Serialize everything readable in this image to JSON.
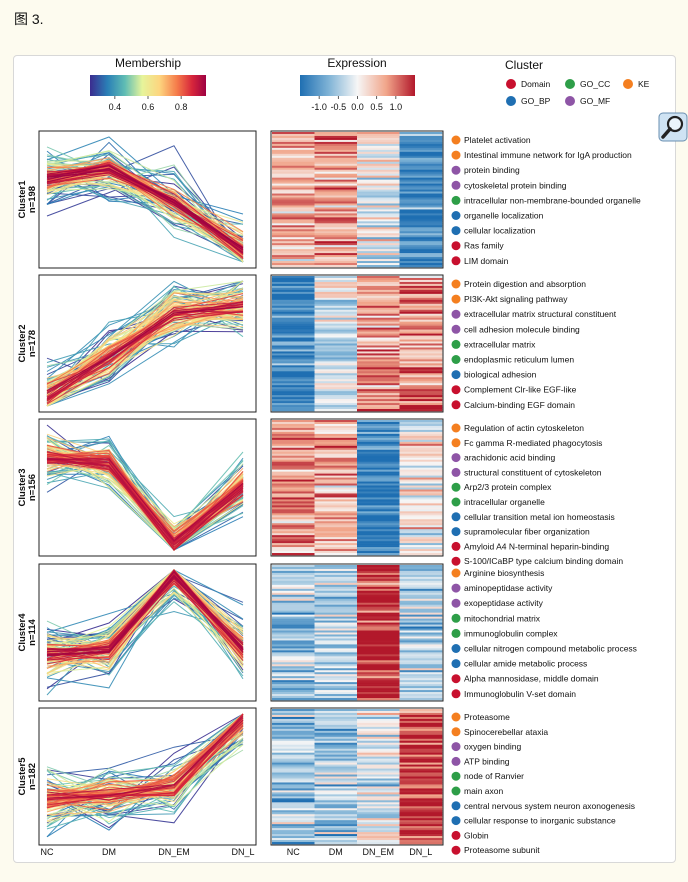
{
  "figure_label": "图 3.",
  "legends": {
    "membership": {
      "title": "Membership",
      "ticks": [
        "0.4",
        "0.6",
        "0.8"
      ],
      "tick_values": [
        0.4,
        0.6,
        0.8
      ],
      "range": [
        0.25,
        0.95
      ]
    },
    "expression": {
      "title": "Expression",
      "ticks": [
        "-1.0",
        "-0.5",
        "0.0",
        "0.5",
        "1.0"
      ],
      "tick_values": [
        -1.0,
        -0.5,
        0.0,
        0.5,
        1.0
      ],
      "range": [
        -1.5,
        1.5
      ]
    },
    "cluster": {
      "title": "Cluster",
      "entries": [
        {
          "label": "Domain",
          "color": "#c8102e"
        },
        {
          "label": "GO_CC",
          "color": "#2e9e48"
        },
        {
          "label": "KE",
          "color": "#f47f20"
        },
        {
          "label": "GO_BP",
          "color": "#1f6fb2"
        },
        {
          "label": "GO_MF",
          "color": "#8e55a6"
        }
      ]
    }
  },
  "x_labels": [
    "NC",
    "DM",
    "DN_EM",
    "DN_L"
  ],
  "clusters": [
    {
      "name": "Cluster1",
      "n": "n=198",
      "pattern": [
        0.55,
        0.75,
        -0.05,
        -1.25
      ],
      "terms": [
        {
          "label": "Platelet activation",
          "type": "KEGG"
        },
        {
          "label": "Intestinal immune network for IgA production",
          "type": "KEGG"
        },
        {
          "label": "protein binding",
          "type": "GO_MF"
        },
        {
          "label": "cytoskeletal protein binding",
          "type": "GO_MF"
        },
        {
          "label": "intracellular non-membrane-bounded organelle",
          "type": "GO_CC"
        },
        {
          "label": "organelle localization",
          "type": "GO_BP"
        },
        {
          "label": "cellular localization",
          "type": "GO_BP"
        },
        {
          "label": "Ras family",
          "type": "Domain"
        },
        {
          "label": "LIM domain",
          "type": "Domain"
        }
      ]
    },
    {
      "name": "Cluster2",
      "n": "n=178",
      "pattern": [
        -1.3,
        -0.35,
        0.75,
        0.9
      ],
      "terms": [
        {
          "label": "Protein digestion and absorption",
          "type": "KEGG"
        },
        {
          "label": "PI3K-Akt signaling pathway",
          "type": "KEGG"
        },
        {
          "label": "extracellular matrix structural constituent",
          "type": "GO_MF"
        },
        {
          "label": "cell adhesion molecule binding",
          "type": "GO_MF"
        },
        {
          "label": "extracellular matrix",
          "type": "GO_CC"
        },
        {
          "label": "endoplasmic reticulum lumen",
          "type": "GO_CC"
        },
        {
          "label": "biological adhesion",
          "type": "GO_BP"
        },
        {
          "label": "Complement Clr-like EGF-like",
          "type": "Domain"
        },
        {
          "label": "Calcium-binding EGF domain",
          "type": "Domain"
        }
      ]
    },
    {
      "name": "Cluster3",
      "n": "n=156",
      "pattern": [
        0.75,
        0.6,
        -1.4,
        0.05
      ],
      "terms": [
        {
          "label": "Regulation of actin cytoskeleton",
          "type": "KEGG"
        },
        {
          "label": "Fc gamma R-mediated phagocytosis",
          "type": "KEGG"
        },
        {
          "label": "arachidonic acid binding",
          "type": "GO_MF"
        },
        {
          "label": "structural constituent of cytoskeleton",
          "type": "GO_MF"
        },
        {
          "label": "Arp2/3 protein complex",
          "type": "GO_CC"
        },
        {
          "label": "intracellular organelle",
          "type": "GO_CC"
        },
        {
          "label": "cellular transition metal ion homeostasis",
          "type": "GO_BP"
        },
        {
          "label": "supramolecular fiber organization",
          "type": "GO_BP"
        },
        {
          "label": "Amyloid A4 N-terminal heparin-binding",
          "type": "Domain"
        },
        {
          "label": "S-100/ICaBP type calcium binding domain",
          "type": "Domain"
        }
      ]
    },
    {
      "name": "Cluster4",
      "n": "n=114",
      "pattern": [
        -0.55,
        -0.45,
        1.45,
        -0.45
      ],
      "terms": [
        {
          "label": "Arginine biosynthesis",
          "type": "KEGG"
        },
        {
          "label": "aminopeptidase activity",
          "type": "GO_MF"
        },
        {
          "label": "exopeptidase activity",
          "type": "GO_MF"
        },
        {
          "label": "mitochondrial matrix",
          "type": "GO_CC"
        },
        {
          "label": "immunoglobulin complex",
          "type": "GO_CC"
        },
        {
          "label": "cellular nitrogen compound metabolic process",
          "type": "GO_BP"
        },
        {
          "label": "cellular amide metabolic process",
          "type": "GO_BP"
        },
        {
          "label": "Alpha mannosidase, middle domain",
          "type": "Domain"
        },
        {
          "label": "Immunoglobulin V-set domain",
          "type": "Domain"
        }
      ]
    },
    {
      "name": "Cluster5",
      "n": "n=182",
      "pattern": [
        -0.55,
        -0.45,
        -0.25,
        1.45
      ],
      "terms": [
        {
          "label": "Proteasome",
          "type": "KEGG"
        },
        {
          "label": "Spinocerebellar ataxia",
          "type": "KEGG"
        },
        {
          "label": "oxygen binding",
          "type": "GO_MF"
        },
        {
          "label": "ATP binding",
          "type": "GO_MF"
        },
        {
          "label": "node of Ranvier",
          "type": "GO_CC"
        },
        {
          "label": "main axon",
          "type": "GO_CC"
        },
        {
          "label": "central nervous system neuron axonogenesis",
          "type": "GO_BP"
        },
        {
          "label": "cellular response to inorganic substance",
          "type": "GO_BP"
        },
        {
          "label": "Globin",
          "type": "Domain"
        },
        {
          "label": "Proteasome subunit",
          "type": "Domain"
        }
      ]
    }
  ],
  "type_colors": {
    "KEGG": "#f47f20",
    "GO_MF": "#8e55a6",
    "GO_CC": "#2e9e48",
    "GO_BP": "#1f6fb2",
    "Domain": "#c8102e"
  },
  "icons": {
    "zoom": "magnifier-icon"
  }
}
